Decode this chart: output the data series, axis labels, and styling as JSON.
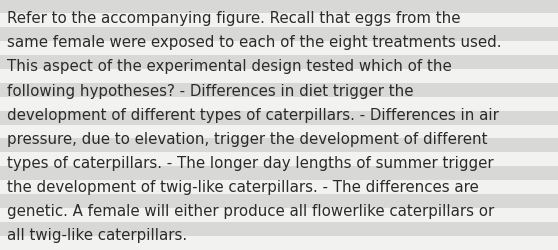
{
  "text": "Refer to the accompanying figure. Recall that eggs from the same female were exposed to each of the eight treatments used. This aspect of the experimental design tested which of the following hypotheses? - Differences in diet trigger the development of different types of caterpillars. - Differences in air pressure, due to elevation, trigger the development of different types of caterpillars. - The longer day lengths of summer trigger the development of twig-like caterpillars. - The differences are genetic. A female will either produce all flowerlike caterpillars or all twig-like caterpillars.",
  "lines": [
    "Refer to the accompanying figure. Recall that eggs from the",
    "same female were exposed to each of the eight treatments used.",
    "This aspect of the experimental design tested which of the",
    "following hypotheses? - Differences in diet trigger the",
    "development of different types of caterpillars. - Differences in air",
    "pressure, due to elevation, trigger the development of different",
    "types of caterpillars. - The longer day lengths of summer trigger",
    "the development of twig-like caterpillars. - The differences are",
    "genetic. A female will either produce all flowerlike caterpillars or",
    "all twig-like caterpillars."
  ],
  "bg_color": "#eeeeed",
  "stripe_light": "#f2f2f1",
  "stripe_dark": "#d8d9d7",
  "text_color": "#2b2b2b",
  "font_size": 10.8,
  "fig_width": 5.58,
  "fig_height": 2.51,
  "dpi": 100
}
